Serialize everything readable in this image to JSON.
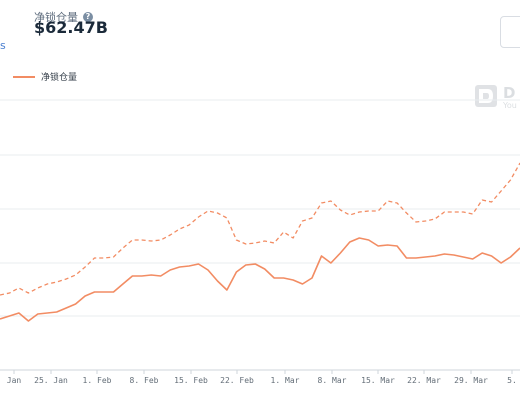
{
  "header": {
    "tvl_label": "净锁仓量",
    "help_icon": "?",
    "tvl_value": "$62.47B",
    "cut_text": "s"
  },
  "legend": {
    "label": "净锁仓量"
  },
  "watermark": {
    "text": "D",
    "sub": "You"
  },
  "colors": {
    "series": "#f28c63",
    "grid": "#e9ecef",
    "tick_text": "#646e78"
  },
  "chart_data": {
    "type": "line",
    "x_ticks": [
      "Jan",
      "25. Jan",
      "1. Feb",
      "8. Feb",
      "15. Feb",
      "22. Feb",
      "1. Mar",
      "8. Mar",
      "15. Mar",
      "22. Mar",
      "29. Mar",
      "5."
    ],
    "series": [
      {
        "style": "solid",
        "values": [
          319,
          316,
          313,
          321,
          314,
          313,
          312,
          308,
          304,
          296,
          292,
          292,
          292,
          284,
          276,
          276,
          275,
          276,
          270,
          267,
          266,
          264,
          270,
          281,
          290,
          272,
          265,
          264,
          269,
          278,
          278,
          280,
          284,
          278,
          256,
          263,
          253,
          242,
          238,
          240,
          246,
          245,
          246,
          258,
          258,
          257,
          256,
          254,
          255,
          257,
          259,
          253,
          256,
          263,
          257,
          248
        ]
      },
      {
        "style": "dashed",
        "values": [
          295,
          293,
          288,
          293,
          288,
          284,
          282,
          279,
          275,
          267,
          258,
          258,
          257,
          248,
          240,
          240,
          241,
          240,
          235,
          229,
          225,
          217,
          211,
          213,
          218,
          240,
          244,
          243,
          241,
          243,
          232,
          238,
          221,
          218,
          203,
          201,
          210,
          215,
          212,
          211,
          211,
          201,
          203,
          213,
          222,
          221,
          219,
          212,
          212,
          212,
          214,
          200,
          202,
          191,
          180,
          163
        ]
      }
    ]
  }
}
